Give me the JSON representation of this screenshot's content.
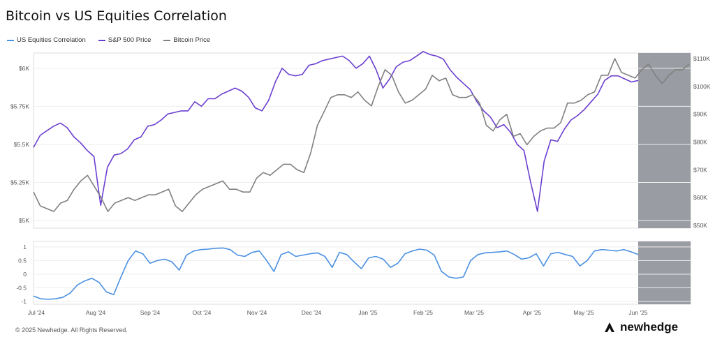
{
  "title": "Bitcoin vs US Equities Correlation",
  "legend": [
    {
      "name": "US Equities Correlation",
      "color": "#4a90e2"
    },
    {
      "name": "S&P 500 Price",
      "color": "#6a3fd0"
    },
    {
      "name": "Bitcoin Price",
      "color": "#808080"
    }
  ],
  "footer": "© 2025 Newhedge. All Rights Reserved.",
  "logo_text": "newhedge",
  "chart_data": [
    {
      "type": "line",
      "x_ticks": [
        "Jul '24",
        "Aug '24",
        "Sep '24",
        "Oct '24",
        "Nov '24",
        "Dec '24",
        "Jan '25",
        "Feb '25",
        "Mar '25",
        "Apr '25",
        "May '25",
        "Jun '25"
      ],
      "y_left_ticks": [
        "$5K",
        "$5.25K",
        "$5.5K",
        "$5.75K",
        "$6K"
      ],
      "y_right_ticks": [
        "$50K",
        "$60K",
        "$70K",
        "$80K",
        "$90K",
        "$100K",
        "$110K"
      ],
      "y_left_range": [
        4950,
        6100
      ],
      "y_right_range": [
        49000,
        112000
      ],
      "series": [
        {
          "name": "S&P 500 Price",
          "axis": "left",
          "color": "#6a3fd0",
          "values": [
            5480,
            5560,
            5590,
            5620,
            5640,
            5610,
            5550,
            5510,
            5460,
            5420,
            5100,
            5350,
            5430,
            5440,
            5470,
            5530,
            5550,
            5620,
            5630,
            5660,
            5700,
            5710,
            5720,
            5720,
            5780,
            5750,
            5800,
            5800,
            5830,
            5850,
            5870,
            5850,
            5810,
            5740,
            5720,
            5790,
            5910,
            6000,
            5960,
            5950,
            5960,
            6020,
            6030,
            6050,
            6060,
            6070,
            6080,
            6050,
            6000,
            6030,
            6080,
            5990,
            5870,
            5930,
            6010,
            6040,
            6050,
            6080,
            6110,
            6090,
            6080,
            6060,
            5990,
            5940,
            5900,
            5860,
            5780,
            5720,
            5680,
            5610,
            5630,
            5580,
            5500,
            5460,
            5250,
            5060,
            5390,
            5530,
            5520,
            5600,
            5660,
            5690,
            5730,
            5780,
            5830,
            5920,
            5950,
            5950,
            5930,
            5910,
            5920
          ]
        },
        {
          "name": "Bitcoin Price",
          "axis": "right",
          "color": "#808080",
          "values": [
            62000,
            57000,
            56000,
            55000,
            58000,
            59000,
            63000,
            66000,
            68000,
            64000,
            60000,
            55000,
            58000,
            59000,
            60000,
            59000,
            60000,
            61000,
            61000,
            62000,
            63000,
            57000,
            55000,
            58000,
            61000,
            63000,
            64000,
            65000,
            66000,
            63000,
            63000,
            62000,
            62000,
            67000,
            69000,
            68000,
            70000,
            72000,
            72000,
            70000,
            69000,
            76000,
            86000,
            91000,
            96000,
            97000,
            97000,
            96000,
            98000,
            95000,
            93000,
            100000,
            106000,
            104000,
            98000,
            94000,
            95000,
            97000,
            99000,
            104000,
            102000,
            103000,
            97000,
            96000,
            96000,
            97000,
            94000,
            86000,
            84000,
            88000,
            90000,
            82000,
            83000,
            79000,
            82000,
            84000,
            85000,
            85000,
            87000,
            94000,
            94000,
            95000,
            97000,
            98000,
            104000,
            104000,
            110000,
            105000,
            104000,
            103000,
            106000,
            108000,
            104000,
            101000,
            104000,
            106000,
            106000,
            108000
          ]
        },
        {
          "name": "US Equities Correlation",
          "axis": "corr",
          "color": "#4a90e2",
          "values": [
            -0.8,
            -0.9,
            -0.92,
            -0.9,
            -0.85,
            -0.7,
            -0.4,
            -0.25,
            -0.15,
            -0.3,
            -0.65,
            -0.75,
            -0.1,
            0.5,
            0.85,
            0.75,
            0.4,
            0.5,
            0.55,
            0.45,
            0.15,
            0.7,
            0.85,
            0.9,
            0.92,
            0.95,
            0.96,
            0.9,
            0.7,
            0.65,
            0.8,
            0.85,
            0.5,
            0.1,
            0.72,
            0.82,
            0.65,
            0.7,
            0.75,
            0.78,
            0.65,
            0.25,
            0.8,
            0.72,
            0.45,
            0.2,
            0.6,
            0.65,
            0.55,
            0.25,
            0.4,
            0.75,
            0.85,
            0.92,
            0.88,
            0.7,
            0.1,
            -0.1,
            -0.15,
            -0.1,
            0.5,
            0.72,
            0.78,
            0.8,
            0.82,
            0.85,
            0.72,
            0.55,
            0.6,
            0.75,
            0.3,
            0.75,
            0.8,
            0.72,
            0.65,
            0.3,
            0.5,
            0.85,
            0.9,
            0.88,
            0.85,
            0.9,
            0.82,
            0.72
          ]
        }
      ],
      "corr_ticks": [
        "1",
        "0.5",
        "0",
        "-0.5",
        "-1"
      ],
      "corr_range": [
        -1.1,
        1.2
      ],
      "highlight_start_label": "Jun '25"
    }
  ]
}
